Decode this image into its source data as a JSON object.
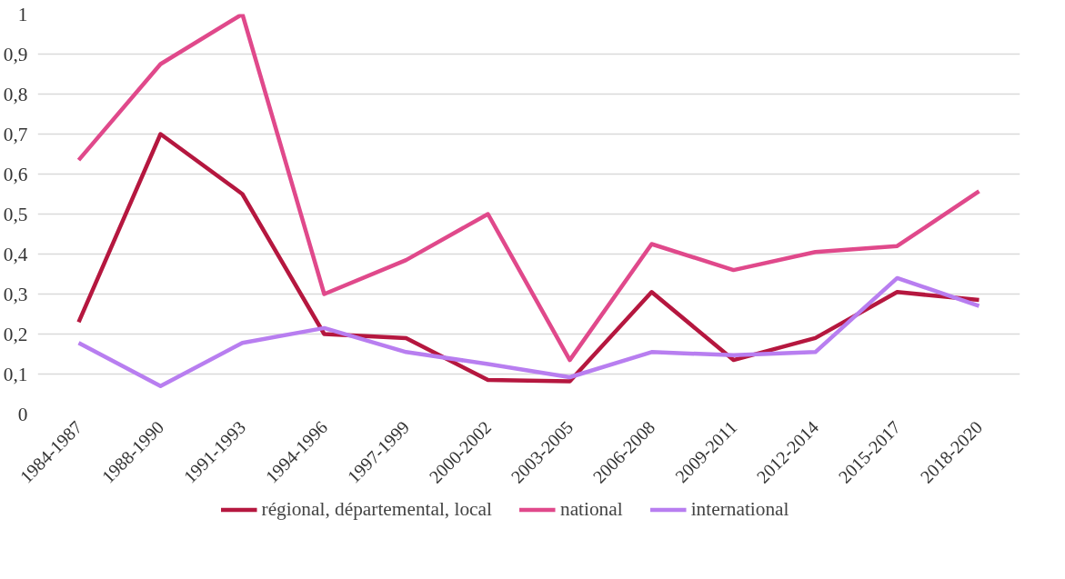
{
  "chart_data": {
    "type": "line",
    "categories": [
      "1984-1987",
      "1988-1990",
      "1991-1993",
      "1994-1996",
      "1997-1999",
      "2000-2002",
      "2003-2005",
      "2006-2008",
      "2009-2011",
      "2012-2014",
      "2015-2017",
      "2018-2020"
    ],
    "series": [
      {
        "name": "régional, départemental, local",
        "color": "#b5173f",
        "values": [
          0.23,
          0.7,
          0.55,
          0.2,
          0.19,
          0.085,
          0.082,
          0.305,
          0.135,
          0.19,
          0.305,
          0.285
        ]
      },
      {
        "name": "national",
        "color": "#e0498b",
        "values": [
          0.635,
          0.875,
          1.0,
          0.3,
          0.385,
          0.5,
          0.135,
          0.425,
          0.36,
          0.405,
          0.42,
          0.557
        ]
      },
      {
        "name": "international",
        "color": "#b87ef0",
        "values": [
          0.178,
          0.07,
          0.178,
          0.215,
          0.155,
          0.125,
          0.092,
          0.155,
          0.147,
          0.155,
          0.34,
          0.27
        ]
      }
    ],
    "ylim": [
      0,
      1
    ],
    "yticks": [
      0,
      {
        "value": 0.1,
        "label": "0,1"
      },
      {
        "value": 0.2,
        "label": "0,2"
      },
      {
        "value": 0.3,
        "label": "0,3"
      },
      {
        "value": 0.4,
        "label": "0,4"
      },
      {
        "value": 0.5,
        "label": "0,5"
      },
      {
        "value": 0.6,
        "label": "0,6"
      },
      {
        "value": 0.7,
        "label": "0,7"
      },
      {
        "value": 0.8,
        "label": "0,8"
      },
      {
        "value": 0.9,
        "label": "0,9"
      },
      1
    ],
    "grid": "y",
    "legend": "bottom",
    "marker": "none",
    "line_style": "solid"
  }
}
